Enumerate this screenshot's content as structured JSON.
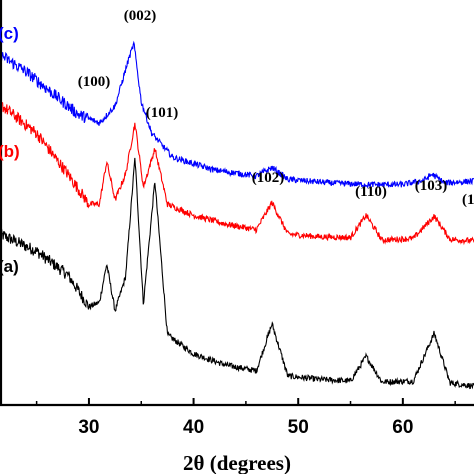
{
  "chart_data": {
    "type": "line",
    "xlabel": "2θ (degrees)",
    "ylabel": "",
    "xlim": [
      21.5,
      66.8
    ],
    "x_ticks": [
      30,
      40,
      50,
      60
    ],
    "y_ticks_shown": false,
    "grid": false,
    "series": [
      {
        "name": "(a)",
        "color": "#000000",
        "x": [
          21.5,
          25,
          28,
          30,
          31,
          31.7,
          32.5,
          33.5,
          34.4,
          35.2,
          36.3,
          37.5,
          40,
          43,
          46,
          47.5,
          49,
          52,
          55,
          56.5,
          58,
          61,
          63,
          64.5,
          66.8
        ],
        "y": [
          200,
          180,
          152,
          115,
          120,
          165,
          110,
          150,
          290,
          118,
          262,
          82,
          60,
          47,
          40,
          95,
          34,
          30,
          28,
          57,
          27,
          28,
          84,
          26,
          22
        ]
      },
      {
        "name": "(b)",
        "color": "#ff0000",
        "x": [
          21.5,
          25,
          28,
          30,
          31,
          31.7,
          32.5,
          33.5,
          34.4,
          35.2,
          36.3,
          37.5,
          40,
          43,
          46,
          47.5,
          49,
          52,
          55,
          56.5,
          58,
          61,
          63,
          64.5,
          66.8
        ],
        "y": [
          352,
          318,
          270,
          235,
          235,
          285,
          240,
          270,
          330,
          255,
          300,
          235,
          222,
          212,
          205,
          237,
          200,
          197,
          196,
          222,
          193,
          195,
          221,
          194,
          192
        ]
      },
      {
        "name": "(c)",
        "color": "#0000ff",
        "x": [
          21.5,
          24,
          27,
          29,
          31,
          32.5,
          33.8,
          34.3,
          35,
          36,
          38,
          42,
          46,
          47.5,
          49,
          53,
          56.5,
          60,
          62,
          62.8,
          64,
          66.8
        ],
        "y": [
          410,
          390,
          360,
          340,
          330,
          350,
          405,
          423,
          355,
          318,
          290,
          275,
          268,
          278,
          264,
          260,
          258,
          258,
          263,
          270,
          260,
          262
        ]
      }
    ],
    "annotations": [
      "(002)",
      "(100)",
      "(101)",
      "(102)",
      "(110)",
      "(103)",
      "(1"
    ]
  }
}
